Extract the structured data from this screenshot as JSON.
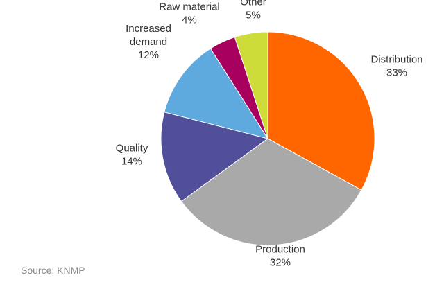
{
  "chart_data": {
    "type": "pie",
    "slices": [
      {
        "label": "Distribution",
        "value": 33,
        "pct_label": "33%",
        "color": "#ff6600"
      },
      {
        "label": "Production",
        "value": 32,
        "pct_label": "32%",
        "color": "#a9a9a9"
      },
      {
        "label": "Quality",
        "value": 14,
        "pct_label": "14%",
        "color": "#524f9a"
      },
      {
        "label": "Increased demand",
        "lines": [
          "Increased",
          "demand"
        ],
        "value": 12,
        "pct_label": "12%",
        "color": "#5ea9de"
      },
      {
        "label": "Raw material",
        "value": 4,
        "pct_label": "4%",
        "color": "#a8005f"
      },
      {
        "label": "Other",
        "value": 5,
        "pct_label": "5%",
        "color": "#cddc39"
      }
    ],
    "start": "12 o'clock",
    "direction": "clockwise"
  },
  "source": "Source: KNMP"
}
